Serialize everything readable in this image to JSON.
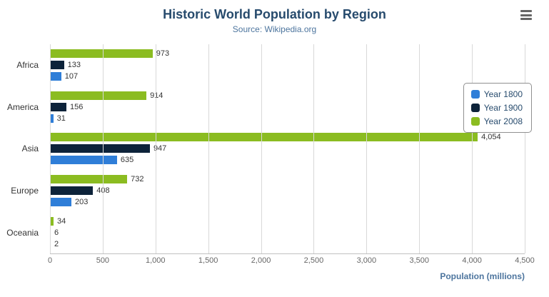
{
  "title": "Historic World Population by Region",
  "subtitle": "Source: Wikipedia.org",
  "export_menu": {
    "icon": "hamburger-icon"
  },
  "chart_data": {
    "type": "bar",
    "orientation": "horizontal",
    "categories": [
      "Africa",
      "America",
      "Asia",
      "Europe",
      "Oceania"
    ],
    "series": [
      {
        "name": "Year 1800",
        "color": "#2f7ed8",
        "values": [
          107,
          31,
          635,
          203,
          2
        ]
      },
      {
        "name": "Year 1900",
        "color": "#0d233a",
        "values": [
          133,
          156,
          947,
          408,
          6
        ]
      },
      {
        "name": "Year 2008",
        "color": "#8bbc21",
        "values": [
          973,
          914,
          4054,
          732,
          34
        ]
      }
    ],
    "bar_order_top_to_bottom": [
      "Year 2008",
      "Year 1900",
      "Year 1800"
    ],
    "xlabel": "Population (millions)",
    "ylabel": "",
    "xlim": [
      0,
      4500
    ],
    "x_ticks": [
      0,
      500,
      1000,
      1500,
      2000,
      2500,
      3000,
      3500,
      4000,
      4500
    ],
    "grid": true,
    "legend_position": "right",
    "data_labels": true,
    "colors": {
      "title": "#274b6d",
      "subtitle": "#4d759e",
      "gridline": "#d8d8d8",
      "axis_label": "#666666",
      "xaxis_title": "#4d759e"
    }
  }
}
